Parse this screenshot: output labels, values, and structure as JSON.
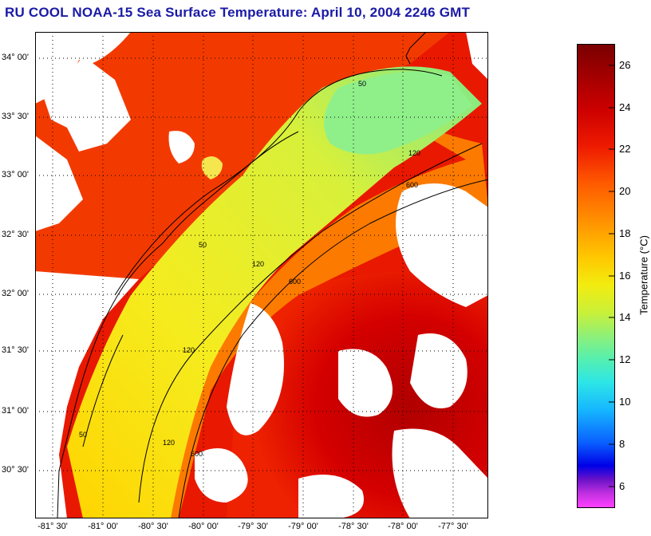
{
  "title": "RU COOL  NOAA-15  Sea Surface Temperature:  April 10, 2004 2246 GMT",
  "latitude_labels": [
    "34° 00'",
    "33° 30'",
    "33° 00'",
    "32° 30'",
    "32° 00'",
    "31° 30'",
    "31° 00'",
    "30° 30'"
  ],
  "longitude_labels": [
    "-81° 30'",
    "-81° 00'",
    "-80° 30'",
    "-80° 00'",
    "-79° 30'",
    "-79° 00'",
    "-78° 30'",
    "-78° 00'",
    "-77° 30'"
  ],
  "isobath_labels": [
    "50",
    "120",
    "600"
  ],
  "colorbar": {
    "label": "Temperature (°C)",
    "ticks": [
      "26",
      "24",
      "22",
      "20",
      "18",
      "16",
      "14",
      "12",
      "10",
      "8",
      "6"
    ],
    "range": [
      5,
      27
    ]
  },
  "colors": {
    "title": "#1a1aa6",
    "land_or_cloud": "#ffffff",
    "warm": "#c80000",
    "cool": "#7fe080"
  }
}
